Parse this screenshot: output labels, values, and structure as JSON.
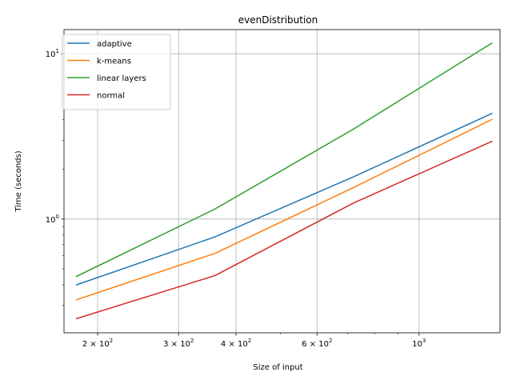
{
  "chart_data": {
    "type": "line",
    "title": "evenDistribution",
    "xlabel": "Size of input",
    "ylabel": "Time (seconds)",
    "xscale": "log",
    "yscale": "log",
    "xlim": [
      169,
      1500
    ],
    "ylim": [
      0.205,
      14
    ],
    "grid": "major",
    "legend": "top-left",
    "x": [
      180,
      360,
      720,
      1440
    ],
    "series": [
      {
        "name": "adaptive",
        "color": "#1f77b4",
        "values": [
          0.4,
          0.78,
          1.8,
          4.35
        ]
      },
      {
        "name": "k-means",
        "color": "#ff7f0e",
        "values": [
          0.325,
          0.62,
          1.55,
          4.0
        ]
      },
      {
        "name": "linear layers",
        "color": "#2ca02c",
        "values": [
          0.45,
          1.15,
          3.5,
          11.6
        ]
      },
      {
        "name": "normal",
        "color": "#d62728",
        "values": [
          0.25,
          0.455,
          1.25,
          2.95
        ]
      }
    ],
    "x_major_ticks": [
      {
        "value": 200,
        "base": "2 × 10",
        "exp": "2"
      },
      {
        "value": 300,
        "base": "3 × 10",
        "exp": "2"
      },
      {
        "value": 400,
        "base": "4 × 10",
        "exp": "2"
      },
      {
        "value": 600,
        "base": "6 × 10",
        "exp": "2"
      },
      {
        "value": 1000,
        "base": "10",
        "exp": "3"
      }
    ],
    "x_minor_ticks": [
      500,
      700,
      800,
      900
    ],
    "y_major_ticks": [
      {
        "value": 1,
        "base": "10",
        "exp": "0"
      },
      {
        "value": 10,
        "base": "10",
        "exp": "1"
      }
    ],
    "y_minor_ticks": [
      0.3,
      0.4,
      0.5,
      0.6,
      0.7,
      0.8,
      0.9,
      2,
      3,
      4,
      5,
      6,
      7,
      8,
      9
    ]
  }
}
